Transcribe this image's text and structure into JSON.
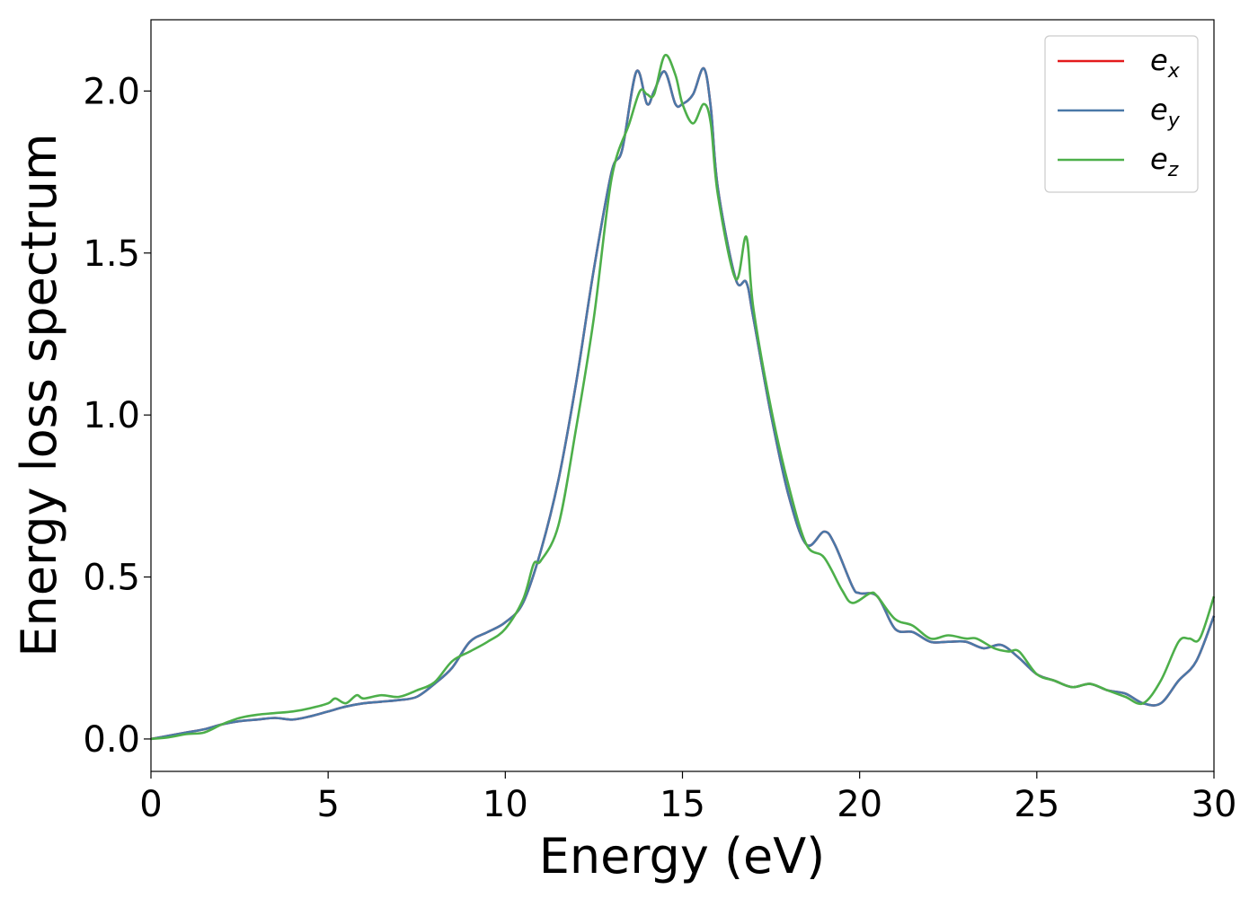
{
  "chart_data": {
    "type": "line",
    "xlabel": "Energy (eV)",
    "ylabel": "Energy loss spectrum",
    "xlim": [
      0,
      30
    ],
    "ylim": [
      -0.1,
      2.22
    ],
    "xticks": [
      0,
      5,
      10,
      15,
      20,
      25,
      30
    ],
    "xtick_labels": [
      "0",
      "5",
      "10",
      "15",
      "20",
      "25",
      "30"
    ],
    "yticks": [
      0.0,
      0.5,
      1.0,
      1.5,
      2.0
    ],
    "ytick_labels": [
      "0.0",
      "0.5",
      "1.0",
      "1.5",
      "2.0"
    ],
    "grid": false,
    "legend_position": "top-right",
    "series": [
      {
        "name": "e_x",
        "legend_base": "e",
        "legend_sub": "x",
        "color": "#e41a1c",
        "x": [
          0,
          0.5,
          1,
          1.5,
          2,
          2.5,
          3,
          3.5,
          4,
          4.5,
          5,
          5.5,
          6,
          6.5,
          7,
          7.5,
          8,
          8.5,
          9,
          9.5,
          10,
          10.5,
          11,
          11.5,
          12,
          12.5,
          13,
          13.3,
          13.7,
          14,
          14.2,
          14.5,
          14.8,
          15,
          15.3,
          15.6,
          15.8,
          16,
          16.5,
          16.8,
          17,
          17.5,
          18,
          18.5,
          19,
          19.3,
          19.8,
          20,
          20.5,
          21,
          21.5,
          22,
          22.5,
          23,
          23.5,
          24,
          24.5,
          25,
          25.5,
          26,
          26.5,
          27,
          27.5,
          28,
          28.5,
          29,
          29.5,
          30
        ],
        "y": [
          0,
          0.01,
          0.02,
          0.03,
          0.045,
          0.055,
          0.06,
          0.065,
          0.06,
          0.07,
          0.085,
          0.1,
          0.11,
          0.115,
          0.12,
          0.13,
          0.17,
          0.22,
          0.3,
          0.33,
          0.36,
          0.42,
          0.58,
          0.8,
          1.1,
          1.45,
          1.75,
          1.82,
          2.06,
          1.96,
          2.0,
          2.06,
          1.96,
          1.96,
          1.99,
          2.07,
          1.95,
          1.7,
          1.42,
          1.41,
          1.3,
          1.0,
          0.75,
          0.6,
          0.64,
          0.6,
          0.47,
          0.45,
          0.44,
          0.34,
          0.33,
          0.3,
          0.3,
          0.3,
          0.28,
          0.29,
          0.25,
          0.2,
          0.18,
          0.16,
          0.17,
          0.15,
          0.14,
          0.11,
          0.11,
          0.18,
          0.24,
          0.38
        ]
      },
      {
        "name": "e_y",
        "legend_base": "e",
        "legend_sub": "y",
        "color": "#4a78a8",
        "x": [
          0,
          0.5,
          1,
          1.5,
          2,
          2.5,
          3,
          3.5,
          4,
          4.5,
          5,
          5.5,
          6,
          6.5,
          7,
          7.5,
          8,
          8.5,
          9,
          9.5,
          10,
          10.5,
          11,
          11.5,
          12,
          12.5,
          13,
          13.3,
          13.7,
          14,
          14.2,
          14.5,
          14.8,
          15,
          15.3,
          15.6,
          15.8,
          16,
          16.5,
          16.8,
          17,
          17.5,
          18,
          18.5,
          19,
          19.3,
          19.8,
          20,
          20.5,
          21,
          21.5,
          22,
          22.5,
          23,
          23.5,
          24,
          24.5,
          25,
          25.5,
          26,
          26.5,
          27,
          27.5,
          28,
          28.5,
          29,
          29.5,
          30
        ],
        "y": [
          0,
          0.01,
          0.02,
          0.03,
          0.045,
          0.055,
          0.06,
          0.065,
          0.06,
          0.07,
          0.085,
          0.1,
          0.11,
          0.115,
          0.12,
          0.13,
          0.17,
          0.22,
          0.3,
          0.33,
          0.36,
          0.42,
          0.58,
          0.8,
          1.1,
          1.45,
          1.75,
          1.82,
          2.06,
          1.96,
          2.0,
          2.06,
          1.96,
          1.96,
          1.99,
          2.07,
          1.95,
          1.7,
          1.42,
          1.41,
          1.3,
          1.0,
          0.75,
          0.6,
          0.64,
          0.6,
          0.47,
          0.45,
          0.44,
          0.34,
          0.33,
          0.3,
          0.3,
          0.3,
          0.28,
          0.29,
          0.25,
          0.2,
          0.18,
          0.16,
          0.17,
          0.15,
          0.14,
          0.11,
          0.11,
          0.18,
          0.24,
          0.38
        ]
      },
      {
        "name": "e_z",
        "legend_base": "e",
        "legend_sub": "z",
        "color": "#4daf4a",
        "x": [
          0,
          0.5,
          1,
          1.5,
          2,
          2.5,
          3,
          3.5,
          4,
          4.5,
          5,
          5.2,
          5.5,
          5.8,
          6,
          6.5,
          7,
          7.5,
          8,
          8.5,
          9,
          9.5,
          10,
          10.5,
          10.8,
          11,
          11.5,
          12,
          12.5,
          13,
          13.5,
          13.8,
          14,
          14.2,
          14.5,
          14.8,
          15,
          15.3,
          15.6,
          15.8,
          16,
          16.5,
          16.8,
          17,
          17.5,
          18,
          18.5,
          19,
          19.5,
          19.8,
          20.3,
          20.5,
          21,
          21.5,
          22,
          22.5,
          23,
          23.3,
          23.8,
          24.2,
          24.5,
          25,
          25.5,
          26,
          26.5,
          27,
          27.5,
          28,
          28.5,
          29,
          29.3,
          29.6,
          30
        ],
        "y": [
          0,
          0.005,
          0.015,
          0.02,
          0.045,
          0.065,
          0.075,
          0.08,
          0.085,
          0.095,
          0.11,
          0.125,
          0.11,
          0.135,
          0.125,
          0.135,
          0.13,
          0.15,
          0.175,
          0.24,
          0.27,
          0.3,
          0.34,
          0.43,
          0.54,
          0.55,
          0.66,
          0.96,
          1.3,
          1.73,
          1.9,
          2.0,
          1.99,
          1.99,
          2.11,
          2.05,
          1.96,
          1.9,
          1.96,
          1.9,
          1.68,
          1.42,
          1.55,
          1.33,
          1.02,
          0.78,
          0.6,
          0.56,
          0.46,
          0.42,
          0.45,
          0.44,
          0.37,
          0.35,
          0.31,
          0.32,
          0.31,
          0.31,
          0.28,
          0.27,
          0.27,
          0.2,
          0.18,
          0.16,
          0.17,
          0.15,
          0.13,
          0.11,
          0.18,
          0.3,
          0.31,
          0.31,
          0.44
        ]
      }
    ]
  }
}
